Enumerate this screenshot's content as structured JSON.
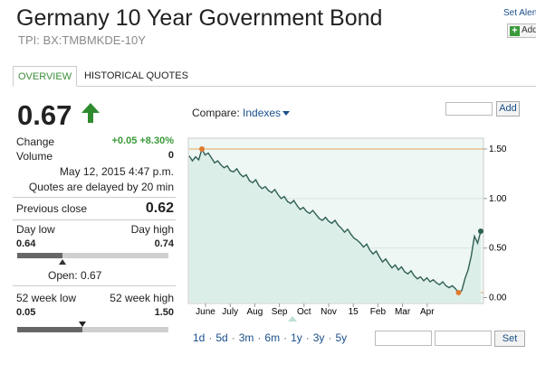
{
  "header": {
    "title": "Germany 10 Year Government Bond",
    "ticker": "TPI: BX:TMBMKDE-10Y",
    "set_alerts": "Set Alert",
    "add_label": "Add"
  },
  "tabs": [
    {
      "label": "OVERVIEW",
      "active": true
    },
    {
      "label": "HISTORICAL QUOTES",
      "active": false
    }
  ],
  "quote": {
    "price": "0.67",
    "direction": "up",
    "change_label": "Change",
    "change_value": "+0.05 +8.30%",
    "volume_label": "Volume",
    "volume_value": "0",
    "timestamp": "May 12, 2015 4:47 p.m.",
    "delay_note": "Quotes are delayed by 20 min",
    "prev_close_label": "Previous close",
    "prev_close_value": "0.62",
    "day_low_label": "Day low",
    "day_high_label": "Day high",
    "day_low": "0.64",
    "day_high": "0.74",
    "open_text": "Open: 0.67",
    "open_position": 0.3,
    "wk52_low_label": "52 week low",
    "wk52_high_label": "52 week high",
    "wk52_low": "0.05",
    "wk52_high": "1.50",
    "wk52_position": 0.43
  },
  "compare": {
    "label": "Compare:",
    "dropdown": "Indexes",
    "input_value": "",
    "add_button": "Add"
  },
  "chart_data": {
    "type": "line",
    "x_ticks": [
      "June",
      "July",
      "Aug",
      "Sep",
      "Oct",
      "Nov",
      "15",
      "Feb",
      "Mar",
      "Apr"
    ],
    "y_ticks": [
      "1.50",
      "1.00",
      "0.50",
      "0.00"
    ],
    "ylim": [
      -0.05,
      1.6
    ],
    "y_ref_lines": [
      1.5,
      0.05
    ],
    "high_marker": {
      "label_index": 2,
      "value": 1.5
    },
    "low_marker": {
      "value": 0.05
    },
    "values": [
      1.43,
      1.38,
      1.42,
      1.39,
      1.5,
      1.44,
      1.46,
      1.41,
      1.36,
      1.38,
      1.34,
      1.31,
      1.33,
      1.28,
      1.27,
      1.3,
      1.25,
      1.22,
      1.24,
      1.18,
      1.16,
      1.19,
      1.13,
      1.1,
      1.12,
      1.08,
      1.06,
      1.09,
      1.04,
      1.0,
      1.02,
      0.97,
      0.95,
      0.98,
      0.93,
      0.89,
      0.91,
      0.87,
      0.85,
      0.88,
      0.84,
      0.8,
      0.78,
      0.81,
      0.77,
      0.75,
      0.78,
      0.73,
      0.7,
      0.66,
      0.69,
      0.64,
      0.6,
      0.58,
      0.55,
      0.51,
      0.54,
      0.48,
      0.44,
      0.47,
      0.41,
      0.36,
      0.39,
      0.34,
      0.3,
      0.33,
      0.28,
      0.31,
      0.26,
      0.24,
      0.27,
      0.22,
      0.19,
      0.21,
      0.17,
      0.2,
      0.16,
      0.18,
      0.15,
      0.13,
      0.16,
      0.12,
      0.1,
      0.12,
      0.09,
      0.05,
      0.07,
      0.19,
      0.28,
      0.42,
      0.62,
      0.55,
      0.67
    ],
    "colors": {
      "line": "#2f5f55",
      "fill": "#dceee8",
      "ref": "#e2a45a",
      "marker": "#e07a2e",
      "end": "#2f5f55"
    }
  },
  "ranges": [
    "1d",
    "5d",
    "3m",
    "6m",
    "1y",
    "3y",
    "5y"
  ],
  "set_button": "Set"
}
